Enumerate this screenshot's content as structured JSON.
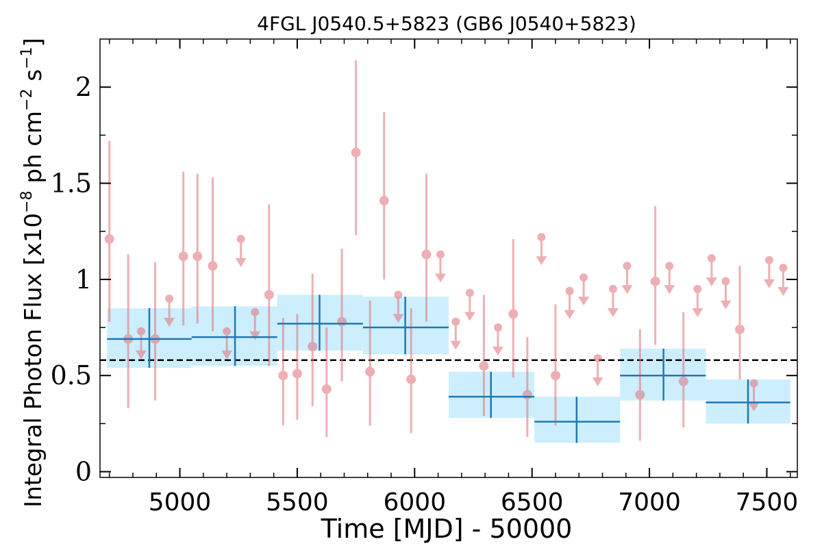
{
  "chart_data": {
    "type": "scatter",
    "title": "4FGL J0540.5+5823 (GB6 J0540+5823)",
    "xlabel": "Time [MJD] - 50000",
    "ylabel": {
      "prefix": "Integral Photon Flux [x10",
      "exp1": "−8",
      "mid": " ph cm",
      "exp2": "−2",
      "mid2": " s",
      "exp3": "−1",
      "suffix": "]"
    },
    "xlim": [
      4660,
      7630
    ],
    "ylim": [
      -0.03,
      2.25
    ],
    "xticks": [
      5000,
      5500,
      6000,
      6500,
      7000,
      7500
    ],
    "yticks": [
      0,
      0.5,
      1,
      1.5,
      2
    ],
    "ytick_labels": [
      "0",
      "0.5",
      "1",
      "1.5",
      "2"
    ],
    "grid": false,
    "reference_line": {
      "y": 0.58,
      "style": "dashed",
      "color": "#000000"
    },
    "colors": {
      "short_bins": "#e06f78",
      "long_bins": "#1f77b4",
      "long_bins_band": "#cdeefc"
    },
    "series": [
      {
        "kind": "detections",
        "points": [
          {
            "x": 4700,
            "y": 1.21,
            "ylo": 0.78,
            "yhi": 1.72
          },
          {
            "x": 4780,
            "y": 0.69,
            "ylo": 0.33,
            "yhi": 1.13
          },
          {
            "x": 4895,
            "y": 0.69,
            "ylo": 0.37,
            "yhi": 1.09
          },
          {
            "x": 5015,
            "y": 1.12,
            "ylo": 0.76,
            "yhi": 1.56
          },
          {
            "x": 5075,
            "y": 1.12,
            "ylo": 0.77,
            "yhi": 1.55
          },
          {
            "x": 5140,
            "y": 1.07,
            "ylo": 0.73,
            "yhi": 1.53
          },
          {
            "x": 5380,
            "y": 0.92,
            "ylo": 0.55,
            "yhi": 1.39
          },
          {
            "x": 5440,
            "y": 0.5,
            "ylo": 0.24,
            "yhi": 0.8
          },
          {
            "x": 5500,
            "y": 0.51,
            "ylo": 0.27,
            "yhi": 0.82
          },
          {
            "x": 5565,
            "y": 0.65,
            "ylo": 0.34,
            "yhi": 1.03
          },
          {
            "x": 5625,
            "y": 0.43,
            "ylo": 0.18,
            "yhi": 0.75
          },
          {
            "x": 5690,
            "y": 0.78,
            "ylo": 0.47,
            "yhi": 1.16
          },
          {
            "x": 5750,
            "y": 1.66,
            "ylo": 1.23,
            "yhi": 2.14
          },
          {
            "x": 5810,
            "y": 0.52,
            "ylo": 0.24,
            "yhi": 0.89
          },
          {
            "x": 5870,
            "y": 1.41,
            "ylo": 1.0,
            "yhi": 1.87
          },
          {
            "x": 5985,
            "y": 0.48,
            "ylo": 0.2,
            "yhi": 0.85
          },
          {
            "x": 6050,
            "y": 1.13,
            "ylo": 0.78,
            "yhi": 1.55
          },
          {
            "x": 6295,
            "y": 0.55,
            "ylo": 0.29,
            "yhi": 0.92
          },
          {
            "x": 6420,
            "y": 0.82,
            "ylo": 0.49,
            "yhi": 1.21
          },
          {
            "x": 6480,
            "y": 0.4,
            "ylo": 0.18,
            "yhi": 0.7
          },
          {
            "x": 6600,
            "y": 0.5,
            "ylo": 0.24,
            "yhi": 0.87
          },
          {
            "x": 6960,
            "y": 0.4,
            "ylo": 0.16,
            "yhi": 0.74
          },
          {
            "x": 7025,
            "y": 0.99,
            "ylo": 0.66,
            "yhi": 1.38
          },
          {
            "x": 7145,
            "y": 0.47,
            "ylo": 0.23,
            "yhi": 0.83
          },
          {
            "x": 7385,
            "y": 0.74,
            "ylo": 0.48,
            "yhi": 1.07
          }
        ]
      },
      {
        "kind": "upper_limits",
        "points": [
          {
            "x": 4835,
            "y": 0.73
          },
          {
            "x": 4955,
            "y": 0.9
          },
          {
            "x": 5200,
            "y": 0.73
          },
          {
            "x": 5260,
            "y": 1.21
          },
          {
            "x": 5320,
            "y": 0.83
          },
          {
            "x": 5930,
            "y": 0.92
          },
          {
            "x": 6110,
            "y": 1.13
          },
          {
            "x": 6175,
            "y": 0.78
          },
          {
            "x": 6235,
            "y": 0.93
          },
          {
            "x": 6355,
            "y": 0.75
          },
          {
            "x": 6540,
            "y": 1.22
          },
          {
            "x": 6660,
            "y": 0.94
          },
          {
            "x": 6720,
            "y": 1.01
          },
          {
            "x": 6780,
            "y": 0.59
          },
          {
            "x": 6845,
            "y": 0.95
          },
          {
            "x": 6905,
            "y": 1.07
          },
          {
            "x": 7085,
            "y": 1.07
          },
          {
            "x": 7205,
            "y": 0.95
          },
          {
            "x": 7265,
            "y": 1.11
          },
          {
            "x": 7325,
            "y": 0.99
          },
          {
            "x": 7445,
            "y": 0.46
          },
          {
            "x": 7510,
            "y": 1.1
          },
          {
            "x": 7570,
            "y": 1.06
          }
        ]
      },
      {
        "kind": "long_bins",
        "bins": [
          {
            "x0": 4690,
            "x1": 5050,
            "x": 4870,
            "y": 0.69,
            "ylo": 0.54,
            "yhi": 0.85
          },
          {
            "x0": 5050,
            "x1": 5415,
            "x": 5235,
            "y": 0.7,
            "ylo": 0.55,
            "yhi": 0.86
          },
          {
            "x0": 5415,
            "x1": 5780,
            "x": 5595,
            "y": 0.77,
            "ylo": 0.63,
            "yhi": 0.92
          },
          {
            "x0": 5780,
            "x1": 6145,
            "x": 5960,
            "y": 0.75,
            "ylo": 0.61,
            "yhi": 0.91
          },
          {
            "x0": 6145,
            "x1": 6510,
            "x": 6325,
            "y": 0.39,
            "ylo": 0.28,
            "yhi": 0.52
          },
          {
            "x0": 6510,
            "x1": 6875,
            "x": 6690,
            "y": 0.26,
            "ylo": 0.15,
            "yhi": 0.39
          },
          {
            "x0": 6875,
            "x1": 7240,
            "x": 7060,
            "y": 0.5,
            "ylo": 0.37,
            "yhi": 0.64
          },
          {
            "x0": 7240,
            "x1": 7600,
            "x": 7420,
            "y": 0.36,
            "ylo": 0.25,
            "yhi": 0.48
          }
        ]
      }
    ]
  }
}
